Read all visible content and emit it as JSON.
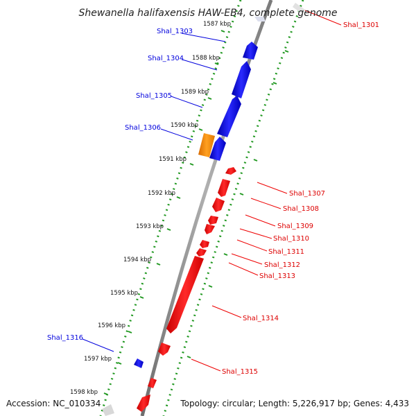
{
  "title": "Shewanella halifaxensis HAW-EB4, complete genome",
  "accession": "Accession: NC_010334",
  "topology": "Topology: circular; Length: 5,226,917 bp; Genes: 4,433",
  "colors": {
    "forward": "#0000dd",
    "reverse": "#ee0000",
    "rna": "#ff8800",
    "tick": "#229922",
    "backbone": "#888888",
    "faded": "#d8d8d8"
  },
  "ticks": [
    "1587 kbp",
    "1588 kbp",
    "1589 kbp",
    "1590 kbp",
    "1591 kbp",
    "1592 kbp",
    "1593 kbp",
    "1594 kbp",
    "1595 kbp",
    "1596 kbp",
    "1597 kbp",
    "1598 kbp"
  ],
  "forward_labels": [
    "Shal_1303",
    "Shal_1304",
    "Shal_1305",
    "Shal_1306",
    "Shal_1316"
  ],
  "reverse_labels": [
    "Shal_1301",
    "Shal_1307",
    "Shal_1308",
    "Shal_1309",
    "Shal_1310",
    "Shal_1311",
    "Shal_1312",
    "Shal_1313",
    "Shal_1314",
    "Shal_1315"
  ]
}
